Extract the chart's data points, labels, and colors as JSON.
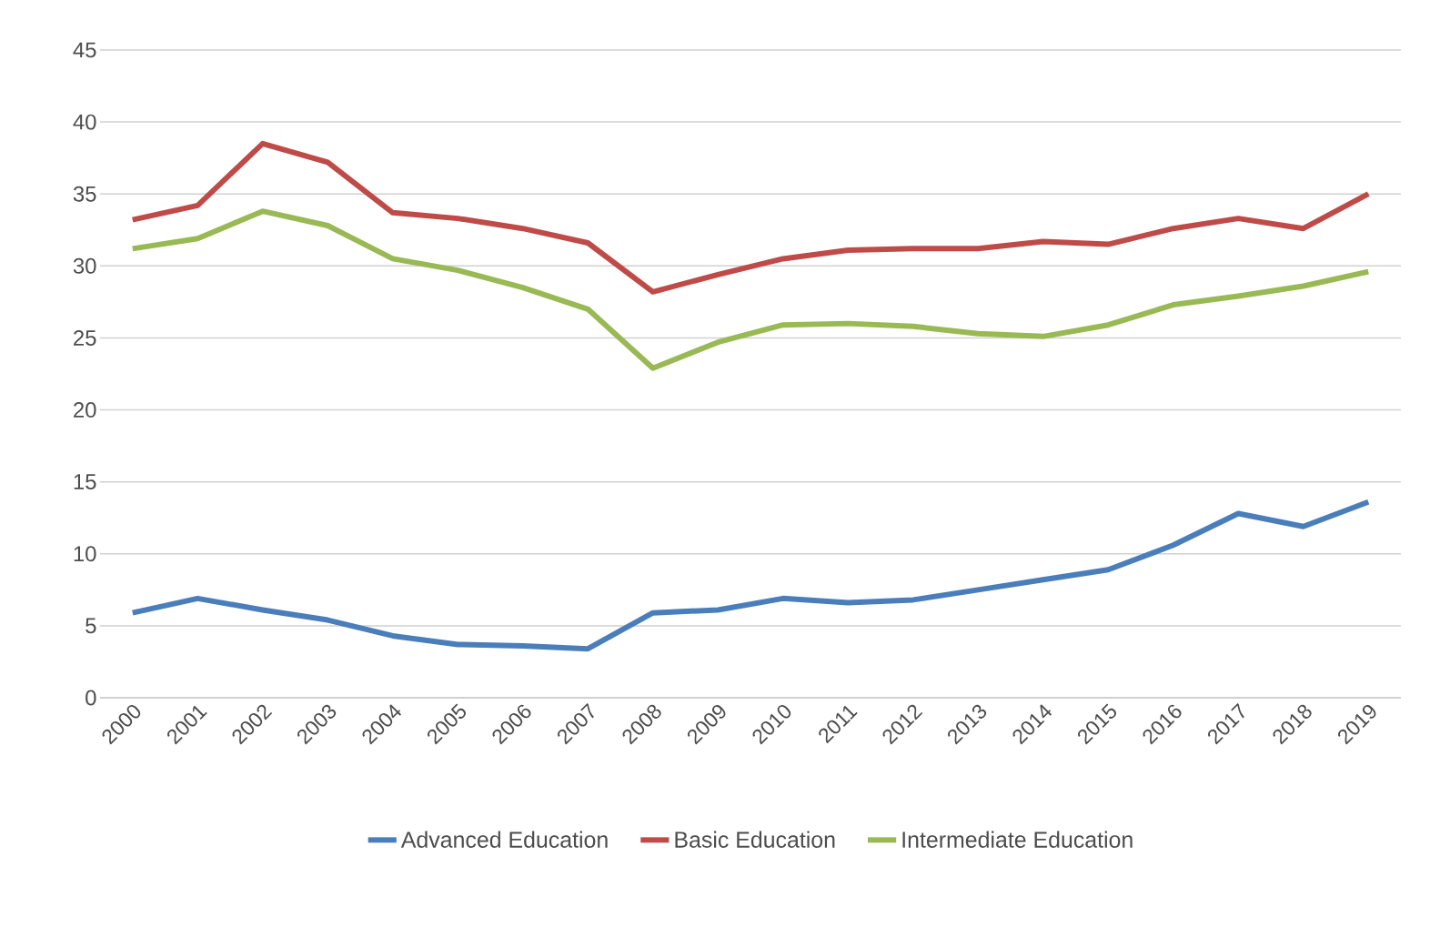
{
  "chart_data": {
    "type": "line",
    "categories": [
      "2000",
      "2001",
      "2002",
      "2003",
      "2004",
      "2005",
      "2006",
      "2007",
      "2008",
      "2009",
      "2010",
      "2011",
      "2012",
      "2013",
      "2014",
      "2015",
      "2016",
      "2017",
      "2018",
      "2019"
    ],
    "series": [
      {
        "name": "Advanced Education",
        "color": "#4a7ebb",
        "values": [
          5.9,
          6.9,
          6.1,
          5.4,
          4.3,
          3.7,
          3.6,
          3.4,
          5.9,
          6.1,
          6.9,
          6.6,
          6.8,
          7.5,
          8.2,
          8.9,
          10.6,
          12.8,
          11.9,
          13.6
        ]
      },
      {
        "name": "Basic Education",
        "color": "#be4b48",
        "values": [
          33.2,
          34.2,
          38.5,
          37.2,
          33.7,
          33.3,
          32.6,
          31.6,
          28.2,
          29.4,
          30.5,
          31.1,
          31.2,
          31.2,
          31.7,
          31.5,
          32.6,
          33.3,
          32.6,
          35.0
        ]
      },
      {
        "name": "Intermediate Education",
        "color": "#98b954",
        "values": [
          31.2,
          31.9,
          33.8,
          32.8,
          30.5,
          29.7,
          28.5,
          27.0,
          22.9,
          24.7,
          25.9,
          26.0,
          25.8,
          25.3,
          25.1,
          25.9,
          27.3,
          27.9,
          28.6,
          29.6
        ]
      }
    ],
    "ylim": [
      0,
      45
    ],
    "yticks": [
      0,
      5,
      10,
      15,
      20,
      25,
      30,
      35,
      40,
      45
    ],
    "grid": "y",
    "legend": "bottom",
    "marker": "none",
    "line_style": "solid"
  }
}
